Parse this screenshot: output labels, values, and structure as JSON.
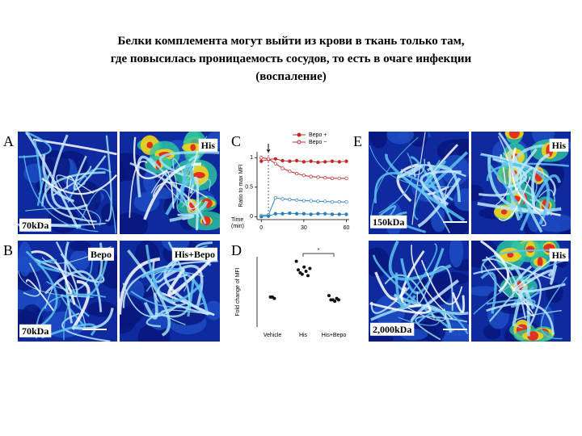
{
  "title": {
    "lines": [
      "Белки комплемента могут выйти из крови в ткань только там,",
      "где повысилась проницаемость сосудов, то есть в очаге инфекции",
      "(воспаление)"
    ]
  },
  "panels": {
    "A": {
      "letter": "A",
      "image_labels": [
        "70kDa",
        "His"
      ]
    },
    "B": {
      "letter": "B",
      "image_labels": [
        "Bepo",
        "70kDa",
        "His+Bepo"
      ]
    },
    "E": {
      "letter": "E",
      "image_labels": [
        "150kDa",
        "His",
        "2,000kDa",
        "His"
      ]
    }
  },
  "chart_c": {
    "letter": "C",
    "type": "line",
    "ylabel": "Ratio to max MFI",
    "xlabel": [
      "Time",
      "(min)"
    ],
    "x": [
      0,
      5,
      10,
      15,
      20,
      25,
      30,
      35,
      40,
      45,
      50,
      55,
      60
    ],
    "series": [
      {
        "name": "Bepo +",
        "color": "#c0282a",
        "marker": "filled",
        "values": [
          0.94,
          0.97,
          0.98,
          0.95,
          0.94,
          0.95,
          0.93,
          0.94,
          0.92,
          0.93,
          0.94,
          0.93,
          0.94
        ]
      },
      {
        "name": "Bepo −",
        "color": "#c0282a",
        "marker": "open",
        "values": [
          1,
          0.98,
          0.9,
          0.82,
          0.77,
          0.73,
          0.7,
          0.68,
          0.67,
          0.66,
          0.65,
          0.65,
          0.65
        ]
      },
      {
        "color": "#2a7fb8",
        "marker": "open",
        "values": [
          0.02,
          0.03,
          0.32,
          0.3,
          0.29,
          0.28,
          0.27,
          0.27,
          0.26,
          0.26,
          0.25,
          0.25,
          0.25
        ]
      },
      {
        "color": "#2a7fb8",
        "marker": "filled",
        "values": [
          0,
          0.01,
          0.05,
          0.05,
          0.06,
          0.05,
          0.05,
          0.04,
          0.05,
          0.05,
          0.04,
          0.04,
          0.04
        ]
      }
    ],
    "xlim": [
      -3,
      62
    ],
    "ylim": [
      -0.05,
      1.1
    ],
    "xticks": [
      0,
      30,
      60
    ],
    "yticks": [
      0,
      0.5,
      1
    ]
  },
  "chart_d": {
    "letter": "D",
    "type": "strip",
    "ylabel": "Fold change of MFI",
    "categories": [
      "Vehicle",
      "His",
      "His+Bepo"
    ],
    "values": [
      [
        1.05,
        1.05,
        1.0
      ],
      [
        2.3,
        2.0,
        1.9,
        1.85,
        2.1,
        1.95,
        1.8,
        2.05
      ],
      [
        1.1,
        0.95,
        0.95,
        0.9,
        1.0,
        0.95
      ]
    ],
    "ylim": [
      0,
      2.8
    ],
    "significance": "*",
    "color": "#111111"
  }
}
